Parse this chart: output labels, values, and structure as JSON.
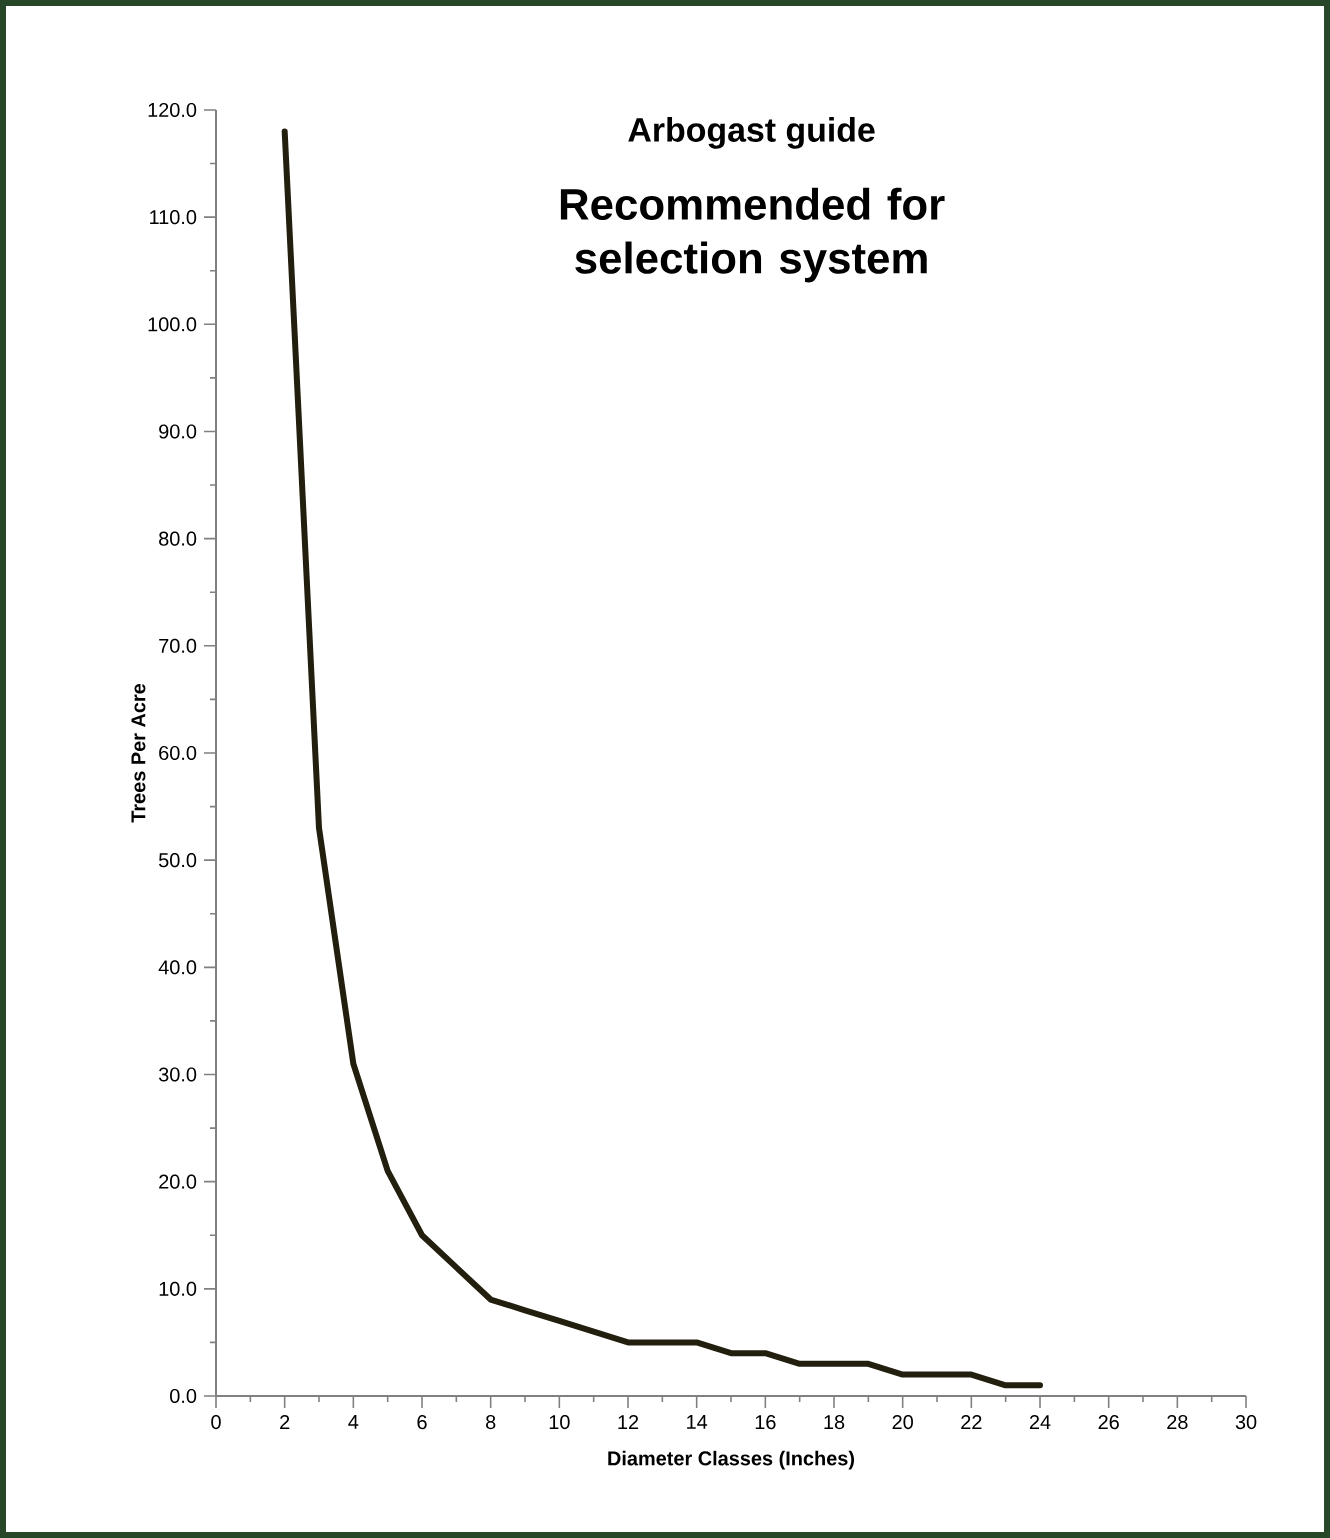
{
  "chart_data": {
    "type": "line",
    "title": "Arbogast guide",
    "subtitle": "Recommended for selection system",
    "xlabel": "Diameter Classes (Inches)",
    "ylabel": "Trees Per Acre",
    "x": [
      2,
      3,
      4,
      5,
      6,
      7,
      8,
      9,
      10,
      11,
      12,
      13,
      14,
      15,
      16,
      17,
      18,
      19,
      20,
      21,
      22,
      23,
      24
    ],
    "series": [
      {
        "color": "#231f0e",
        "values": [
          118,
          53,
          31,
          21,
          15,
          12,
          9,
          8,
          7,
          6,
          5,
          5,
          5,
          4,
          4,
          3,
          3,
          3,
          2,
          2,
          2,
          1,
          1
        ]
      }
    ],
    "xlim": [
      0,
      30
    ],
    "xticks": [
      0,
      2,
      4,
      6,
      8,
      10,
      12,
      14,
      16,
      18,
      20,
      22,
      24,
      26,
      28,
      30
    ],
    "ylim": [
      0,
      120
    ],
    "yticks": [
      {
        "value": 0,
        "label": "0.0"
      },
      {
        "value": 10,
        "label": "10.0"
      },
      {
        "value": 20,
        "label": "20.0"
      },
      {
        "value": 30,
        "label": "30.0"
      },
      {
        "value": 40,
        "label": "40.0"
      },
      {
        "value": 50,
        "label": "50.0"
      },
      {
        "value": 60,
        "label": "60.0"
      },
      {
        "value": 70,
        "label": "70.0"
      },
      {
        "value": 80,
        "label": "80.0"
      },
      {
        "value": 90,
        "label": "90.0"
      },
      {
        "value": 100,
        "label": "100.0"
      },
      {
        "value": 110,
        "label": "110.0"
      },
      {
        "value": 120,
        "label": "120.0"
      }
    ],
    "grid": false,
    "marker": "none",
    "line_style": "solid"
  }
}
